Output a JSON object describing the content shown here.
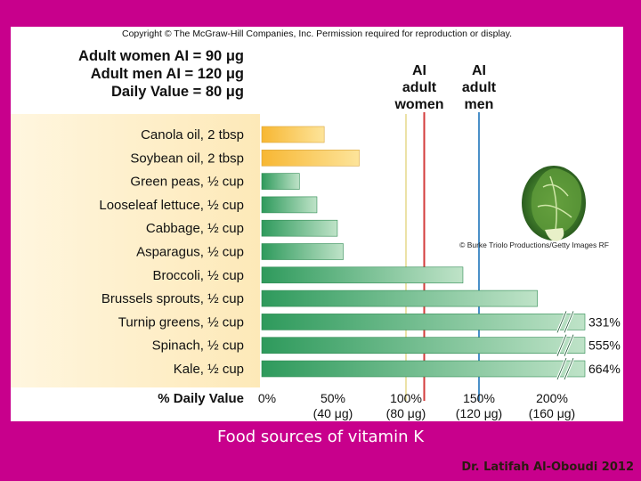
{
  "copyright": "Copyright © The McGraw-Hill Companies, Inc. Permission required for reproduction or display.",
  "header_lines": [
    "Adult women AI = 90 μg",
    "Adult men AI = 120 μg",
    "Daily Value = 80 μg"
  ],
  "ref_labels": {
    "women": [
      "AI",
      "adult",
      "women"
    ],
    "men": [
      "AI",
      "adult",
      "men"
    ]
  },
  "photo_credit": "© Burke Triolo Productions/Getty Images RF",
  "caption": "Food sources of vitamin K",
  "author_credit": "Dr. Latifah Al-Oboudi 2012",
  "colors": {
    "background": "#c8008c",
    "oil_bar": "#f3c24a",
    "veg_bar": "#3aa46a",
    "women_line": "#d33a3a",
    "men_line": "#4a8fc8",
    "dv_line": "#e6d98a"
  },
  "chart_data": {
    "type": "bar",
    "orientation": "horizontal",
    "xlabel": "% Daily Value",
    "xlim": [
      0,
      200
    ],
    "x_ticks": [
      {
        "pct": 0,
        "label": "0%",
        "sub": ""
      },
      {
        "pct": 50,
        "label": "50%",
        "sub": "(40 μg)"
      },
      {
        "pct": 100,
        "label": "100%",
        "sub": "(80 μg)"
      },
      {
        "pct": 150,
        "label": "150%",
        "sub": "(120 μg)"
      },
      {
        "pct": 200,
        "label": "200%",
        "sub": "(160 μg)"
      }
    ],
    "reference_lines": [
      {
        "key": "dv",
        "pct": 100
      },
      {
        "key": "women",
        "pct": 112.5
      },
      {
        "key": "men",
        "pct": 150
      }
    ],
    "bars": [
      {
        "food": "Canola oil, 2 tbsp",
        "pct": 44,
        "group": "oil",
        "label": ""
      },
      {
        "food": "Soybean oil, 2 tbsp",
        "pct": 68,
        "group": "oil",
        "label": ""
      },
      {
        "food": "Green peas, ½ cup",
        "pct": 27,
        "group": "veg",
        "label": ""
      },
      {
        "food": "Looseleaf lettuce, ½ cup",
        "pct": 39,
        "group": "veg",
        "label": ""
      },
      {
        "food": "Cabbage, ½ cup",
        "pct": 53,
        "group": "veg",
        "label": ""
      },
      {
        "food": "Asparagus, ½ cup",
        "pct": 57,
        "group": "veg",
        "label": ""
      },
      {
        "food": "Broccoli, ½ cup",
        "pct": 139,
        "group": "veg",
        "label": ""
      },
      {
        "food": "Brussels sprouts, ½ cup",
        "pct": 190,
        "group": "veg",
        "label": ""
      },
      {
        "food": "Turnip greens, ½ cup",
        "pct": 331,
        "group": "veg",
        "label": "331%",
        "truncated": true
      },
      {
        "food": "Spinach, ½ cup",
        "pct": 555,
        "group": "veg",
        "label": "555%",
        "truncated": true
      },
      {
        "food": "Kale, ½ cup",
        "pct": 664,
        "group": "veg",
        "label": "664%",
        "truncated": true
      }
    ]
  }
}
